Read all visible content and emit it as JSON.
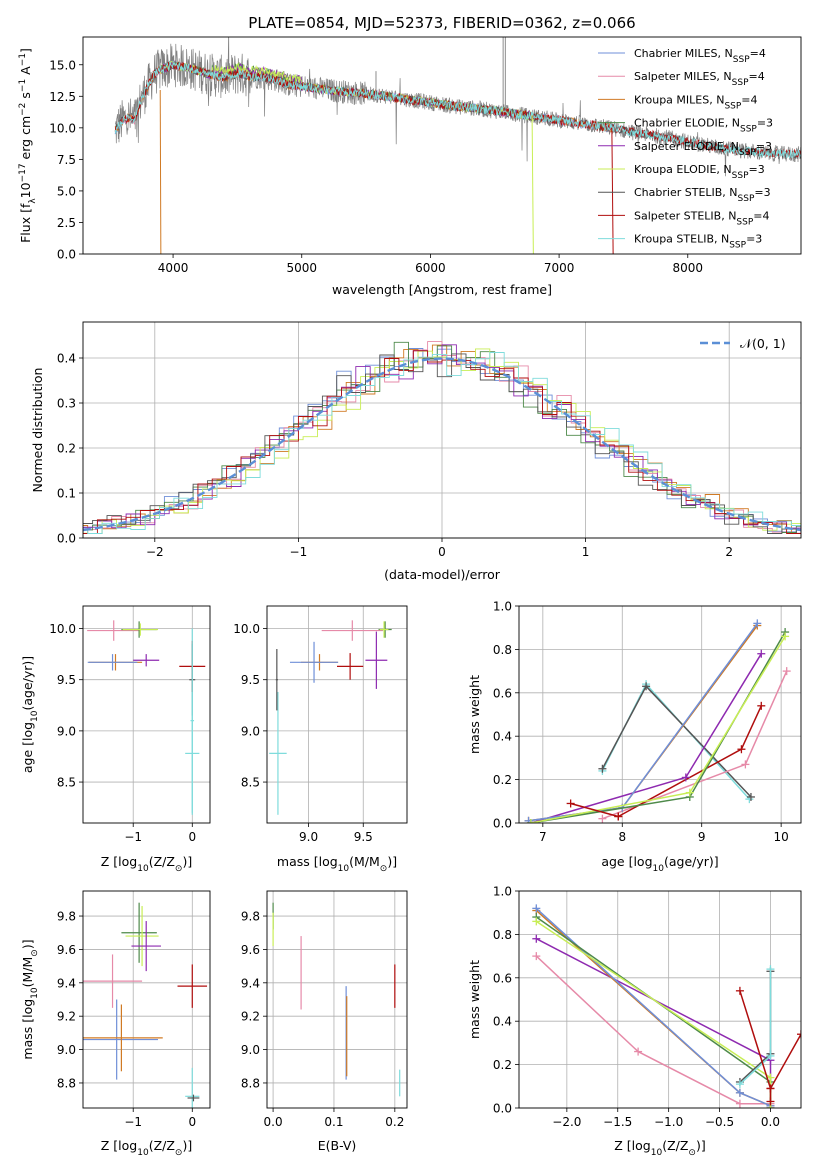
{
  "colors": {
    "Chabrier MILES": "#6f8fd8",
    "Salpeter MILES": "#e68aa8",
    "Kroupa MILES": "#d07a24",
    "Chabrier ELODIE": "#4e8a4a",
    "Salpeter ELODIE": "#8e2ab0",
    "Kroupa ELODIE": "#c8ee55",
    "Chabrier STELIB": "#555555",
    "Salpeter STELIB": "#b00e0e",
    "Kroupa STELIB": "#7fdcdc",
    "data": "#808080",
    "normal": "#5b8fd6"
  },
  "chart_data": [
    {
      "id": "spectrum",
      "type": "line",
      "title": "PLATE=0854, MJD=52373, FIBERID=0362, z=0.066",
      "xlabel": "wavelength [Angstrom, rest frame]",
      "ylabel": "Flux [f",
      "ylabel_sub": "λ",
      "ylabel_mid": "10",
      "ylabel_sup1": "−17",
      "ylabel_mid2": " erg cm",
      "ylabel_sup2": "−2",
      "ylabel_mid3": " s",
      "ylabel_sup3": "−1",
      "ylabel_mid4": " A",
      "ylabel_sup4": "−1",
      "ylabel_end": "]",
      "xlim": [
        3300,
        8880
      ],
      "ylim": [
        0,
        17.2
      ],
      "xticks": [
        4000,
        5000,
        6000,
        7000,
        8000
      ],
      "xtick_labels": [
        "4000",
        "5000",
        "6000",
        "7000",
        "8000"
      ],
      "yticks": [
        0,
        2.5,
        5,
        7.5,
        10,
        12.5,
        15
      ],
      "ytick_labels": [
        "0.0",
        "2.5",
        "5.0",
        "7.5",
        "10.0",
        "12.5",
        "15.0"
      ],
      "grid": false,
      "legend_position": "top-right",
      "continuum": {
        "x": [
          3550,
          3600,
          3650,
          3700,
          3750,
          3800,
          3850,
          3900,
          3950,
          4000,
          4100,
          4200,
          4300,
          4400,
          4500,
          4600,
          4700,
          4800,
          4900,
          5000,
          5200,
          5400,
          5600,
          5800,
          6000,
          6200,
          6400,
          6600,
          6800,
          7000,
          7200,
          7400,
          7600,
          7800,
          8000,
          8200,
          8400,
          8600,
          8800
        ],
        "y": [
          9.8,
          10.5,
          10.8,
          10.6,
          12.2,
          13.2,
          14.2,
          14.6,
          14.8,
          15.0,
          14.8,
          14.5,
          14.2,
          14.0,
          14.3,
          14.1,
          14.0,
          13.8,
          13.4,
          13.3,
          13.0,
          12.8,
          12.6,
          12.3,
          12.0,
          11.7,
          11.5,
          11.2,
          10.9,
          10.6,
          10.3,
          10.0,
          9.6,
          9.3,
          8.9,
          8.5,
          8.2,
          8.0,
          7.9
        ]
      },
      "legend": [
        {
          "label": "Chabrier MILES, N",
          "sub": "SSP",
          "tail": "=4",
          "color": "Chabrier MILES"
        },
        {
          "label": "Salpeter MILES, N",
          "sub": "SSP",
          "tail": "=4",
          "color": "Salpeter MILES"
        },
        {
          "label": "Kroupa MILES, N",
          "sub": "SSP",
          "tail": "=4",
          "color": "Kroupa MILES"
        },
        {
          "label": "Chabrier ELODIE, N",
          "sub": "SSP",
          "tail": "=3",
          "color": "Chabrier ELODIE"
        },
        {
          "label": "Salpeter ELODIE, N",
          "sub": "SSP",
          "tail": "=3",
          "color": "Salpeter ELODIE"
        },
        {
          "label": "Kroupa ELODIE, N",
          "sub": "SSP",
          "tail": "=3",
          "color": "Kroupa ELODIE"
        },
        {
          "label": "Chabrier STELIB, N",
          "sub": "SSP",
          "tail": "=3",
          "color": "Chabrier STELIB"
        },
        {
          "label": "Salpeter STELIB, N",
          "sub": "SSP",
          "tail": "=4",
          "color": "Salpeter STELIB"
        },
        {
          "label": "Kroupa STELIB, N",
          "sub": "SSP",
          "tail": "=3",
          "color": "Kroupa STELIB"
        }
      ]
    },
    {
      "id": "residuals",
      "type": "line",
      "xlabel": "(data-model)/error",
      "ylabel": "Normed distribution",
      "xlim": [
        -2.5,
        2.5
      ],
      "ylim": [
        0,
        0.48
      ],
      "xticks": [
        -2,
        -1,
        0,
        1,
        2
      ],
      "xtick_labels": [
        "−2",
        "−1",
        "0",
        "1",
        "2"
      ],
      "yticks": [
        0,
        0.1,
        0.2,
        0.3,
        0.4
      ],
      "ytick_labels": [
        "0.0",
        "0.1",
        "0.2",
        "0.3",
        "0.4"
      ],
      "grid": true,
      "legend_position": "top-right",
      "legend": [
        {
          "label": "𝒩(0, 1)",
          "color": "normal"
        }
      ],
      "bin_width": 0.1
    },
    {
      "id": "age-vs-Z",
      "type": "scatter",
      "xlabel": "Z [log",
      "xlabel_sub": "10",
      "xlabel_tail": "(Z/Z",
      "xlabel_sub2": "⊙",
      "xlabel_end": ")]",
      "ylabel": "age  [log",
      "ylabel_sub": "10",
      "ylabel_tail": "(age/yr)]",
      "xlim": [
        -1.85,
        0.3
      ],
      "ylim": [
        8.1,
        10.22
      ],
      "xticks": [
        -1,
        0
      ],
      "xtick_labels": [
        "−1",
        "0"
      ],
      "yticks": [
        8.5,
        9.0,
        9.5,
        10.0
      ],
      "ytick_labels": [
        "8.5",
        "9.0",
        "9.5",
        "10.0"
      ],
      "grid": true,
      "points": [
        {
          "m": "Salpeter MILES",
          "x": -1.33,
          "y": 9.98,
          "xerr": 0.45,
          "yerr": 0.1
        },
        {
          "m": "Kroupa MILES",
          "x": -1.3,
          "y": 9.67,
          "xerr": 0.45,
          "yerr": 0.08
        },
        {
          "m": "Chabrier MILES",
          "x": -1.35,
          "y": 9.67,
          "xerr": 0.42,
          "yerr": 0.08
        },
        {
          "m": "Chabrier ELODIE",
          "x": -0.9,
          "y": 9.99,
          "xerr": 0.3,
          "yerr": 0.08
        },
        {
          "m": "Kroupa ELODIE",
          "x": -0.88,
          "y": 9.99,
          "xerr": 0.3,
          "yerr": 0.06
        },
        {
          "m": "Salpeter ELODIE",
          "x": -0.78,
          "y": 9.69,
          "xerr": 0.22,
          "yerr": 0.06
        },
        {
          "m": "Salpeter STELIB",
          "x": 0.0,
          "y": 9.63,
          "xerr": 0.22,
          "yerr": 0.25
        },
        {
          "m": "Chabrier STELIB",
          "x": 0.0,
          "y": 9.5,
          "xerr": 0.05,
          "yerr": 0.35
        },
        {
          "m": "Kroupa STELIB",
          "x": 0.0,
          "y": 8.78,
          "xerr": 0.12,
          "yerr": 0.6
        },
        {
          "m": "Kroupa STELIB",
          "x": 0.0,
          "y": 9.1,
          "xerr": 0.03,
          "yerr": 0.9
        }
      ]
    },
    {
      "id": "age-vs-mass",
      "type": "scatter",
      "xlabel": "mass [log",
      "xlabel_sub": "10",
      "xlabel_tail": "(M/M",
      "xlabel_sub2": "⊙",
      "xlabel_end": ")]",
      "xlim": [
        8.62,
        9.9
      ],
      "ylim": [
        8.1,
        10.22
      ],
      "xticks": [
        9.0,
        9.5
      ],
      "xtick_labels": [
        "9.0",
        "9.5"
      ],
      "yticks": [
        8.5,
        9.0,
        9.5,
        10.0
      ],
      "ytick_labels": [
        "8.5",
        "9.0",
        "9.5",
        "10.0"
      ],
      "grid": true,
      "points": [
        {
          "m": "Salpeter MILES",
          "x": 9.4,
          "y": 9.98,
          "xerr": 0.28,
          "yerr": 0.1
        },
        {
          "m": "Kroupa MILES",
          "x": 9.1,
          "y": 9.67,
          "xerr": 0.17,
          "yerr": 0.08
        },
        {
          "m": "Chabrier MILES",
          "x": 9.05,
          "y": 9.67,
          "xerr": 0.22,
          "yerr": 0.2
        },
        {
          "m": "Chabrier ELODIE",
          "x": 9.7,
          "y": 9.99,
          "xerr": 0.06,
          "yerr": 0.08
        },
        {
          "m": "Kroupa ELODIE",
          "x": 9.69,
          "y": 9.99,
          "xerr": 0.04,
          "yerr": 0.08
        },
        {
          "m": "Salpeter ELODIE",
          "x": 9.62,
          "y": 9.69,
          "xerr": 0.1,
          "yerr": 0.28
        },
        {
          "m": "Salpeter STELIB",
          "x": 9.38,
          "y": 9.63,
          "xerr": 0.12,
          "yerr": 0.13
        },
        {
          "m": "Kroupa STELIB",
          "x": 8.72,
          "y": 8.78,
          "xerr": 0.08,
          "yerr": 0.6
        },
        {
          "m": "Chabrier STELIB",
          "x": 8.71,
          "y": 9.5,
          "xerr": 0.01,
          "yerr": 0.3
        }
      ]
    },
    {
      "id": "weight-vs-age",
      "type": "line",
      "xlabel": "age  [log",
      "xlabel_sub": "10",
      "xlabel_tail": "(age/yr)]",
      "ylabel": "mass weight",
      "xlim": [
        6.7,
        10.25
      ],
      "ylim": [
        0,
        1
      ],
      "xticks": [
        7,
        8,
        9,
        10
      ],
      "xtick_labels": [
        "7",
        "8",
        "9",
        "10"
      ],
      "yticks": [
        0,
        0.2,
        0.4,
        0.6,
        0.8,
        1.0
      ],
      "ytick_labels": [
        "0.0",
        "0.2",
        "0.4",
        "0.6",
        "0.8",
        "1.0"
      ],
      "grid": true,
      "series": [
        {
          "m": "Kroupa STELIB",
          "x": [
            7.75,
            8.3,
            9.6
          ],
          "y": [
            0.24,
            0.64,
            0.11
          ]
        },
        {
          "m": "Chabrier STELIB",
          "x": [
            7.75,
            8.3,
            9.62
          ],
          "y": [
            0.25,
            0.63,
            0.12
          ]
        },
        {
          "m": "Salpeter MILES",
          "x": [
            7.75,
            9.55,
            10.07
          ],
          "y": [
            0.02,
            0.27,
            0.7
          ]
        },
        {
          "m": "Salpeter STELIB",
          "x": [
            7.95,
            9.5,
            9.75
          ],
          "y": [
            0.03,
            0.34,
            0.54
          ]
        },
        {
          "m": "Salpeter ELODIE",
          "x": [
            6.85,
            8.8,
            9.75
          ],
          "y": [
            0.0,
            0.21,
            0.78
          ]
        },
        {
          "m": "Kroupa MILES",
          "x": [
            6.82,
            8.0,
            9.7
          ],
          "y": [
            0.01,
            0.07,
            0.91
          ]
        },
        {
          "m": "Chabrier MILES",
          "x": [
            6.82,
            8.0,
            9.7
          ],
          "y": [
            0.01,
            0.07,
            0.92
          ]
        },
        {
          "m": "Chabrier ELODIE",
          "x": [
            6.85,
            8.85,
            10.05
          ],
          "y": [
            0.0,
            0.12,
            0.88
          ]
        },
        {
          "m": "Kroupa ELODIE",
          "x": [
            6.85,
            8.85,
            10.05
          ],
          "y": [
            0.0,
            0.14,
            0.86
          ]
        },
        {
          "m": "Salpeter STELIB",
          "x": [
            7.35,
            7.95
          ],
          "y": [
            0.09,
            0.03
          ]
        }
      ]
    },
    {
      "id": "mass-vs-Z",
      "type": "scatter",
      "xlabel": "Z [log",
      "xlabel_sub": "10",
      "xlabel_tail": "(Z/Z",
      "xlabel_sub2": "⊙",
      "xlabel_end": ")]",
      "ylabel": "mass [log",
      "ylabel_sub": "10",
      "ylabel_tail": "(M/M",
      "ylabel_sub2": "⊙",
      "ylabel_end": ")]",
      "xlim": [
        -1.85,
        0.3
      ],
      "ylim": [
        8.65,
        9.95
      ],
      "xticks": [
        -1,
        0
      ],
      "xtick_labels": [
        "−1",
        "0"
      ],
      "yticks": [
        8.8,
        9.0,
        9.2,
        9.4,
        9.6,
        9.8
      ],
      "ytick_labels": [
        "8.8",
        "9.0",
        "9.2",
        "9.4",
        "9.6",
        "9.8"
      ],
      "grid": true,
      "points": [
        {
          "m": "Salpeter MILES",
          "x": -1.35,
          "y": 9.41,
          "xerr": 0.5,
          "yerr": 0.16
        },
        {
          "m": "Salpeter STELIB",
          "x": 0.0,
          "y": 9.38,
          "xerr": 0.25,
          "yerr": 0.13
        },
        {
          "m": "Chabrier MILES",
          "x": -1.28,
          "y": 9.06,
          "xerr": 0.7,
          "yerr": 0.24
        },
        {
          "m": "Kroupa MILES",
          "x": -1.2,
          "y": 9.07,
          "xerr": 0.7,
          "yerr": 0.2
        },
        {
          "m": "Chabrier ELODIE",
          "x": -0.9,
          "y": 9.7,
          "xerr": 0.3,
          "yerr": 0.18
        },
        {
          "m": "Kroupa ELODIE",
          "x": -0.85,
          "y": 9.68,
          "xerr": 0.28,
          "yerr": 0.18
        },
        {
          "m": "Salpeter ELODIE",
          "x": -0.78,
          "y": 9.62,
          "xerr": 0.25,
          "yerr": 0.15
        },
        {
          "m": "Kroupa STELIB",
          "x": 0.0,
          "y": 8.72,
          "xerr": 0.12,
          "yerr": 0.17
        },
        {
          "m": "Chabrier STELIB",
          "x": 0.02,
          "y": 8.71,
          "xerr": 0.1,
          "yerr": 0.02
        }
      ]
    },
    {
      "id": "mass-vs-ebv",
      "type": "scatter",
      "xlabel": "E(B-V)",
      "xlim": [
        -0.01,
        0.22
      ],
      "ylim": [
        8.65,
        9.95
      ],
      "xticks": [
        0.0,
        0.1,
        0.2
      ],
      "xtick_labels": [
        "0.0",
        "0.1",
        "0.2"
      ],
      "yticks": [
        8.8,
        9.0,
        9.2,
        9.4,
        9.6,
        9.8
      ],
      "ytick_labels": [
        "8.8",
        "9.0",
        "9.2",
        "9.4",
        "9.6",
        "9.8"
      ],
      "grid": true,
      "points": [
        {
          "m": "Chabrier ELODIE",
          "x": 0.0,
          "y": 9.8,
          "xerr": 0.0,
          "yerr": 0.08
        },
        {
          "m": "Kroupa ELODIE",
          "x": 0.0,
          "y": 9.72,
          "xerr": 0.0,
          "yerr": 0.1
        },
        {
          "m": "Salpeter MILES",
          "x": 0.046,
          "y": 9.46,
          "xerr": 0.0,
          "yerr": 0.22
        },
        {
          "m": "Chabrier MILES",
          "x": 0.12,
          "y": 9.1,
          "xerr": 0.0,
          "yerr": 0.28
        },
        {
          "m": "Kroupa MILES",
          "x": 0.121,
          "y": 9.08,
          "xerr": 0.0,
          "yerr": 0.24
        },
        {
          "m": "Salpeter STELIB",
          "x": 0.2,
          "y": 9.38,
          "xerr": 0.0,
          "yerr": 0.13
        },
        {
          "m": "Kroupa STELIB",
          "x": 0.208,
          "y": 8.8,
          "xerr": 0.0,
          "yerr": 0.08
        }
      ]
    },
    {
      "id": "weight-vs-Z",
      "type": "line",
      "xlabel": "Z [log",
      "xlabel_sub": "10",
      "xlabel_tail": "(Z/Z",
      "xlabel_sub2": "⊙",
      "xlabel_end": ")]",
      "ylabel": "mass weight",
      "xlim": [
        -2.47,
        0.3
      ],
      "ylim": [
        0,
        1
      ],
      "xticks": [
        -2.0,
        -1.5,
        -1.0,
        -0.5,
        0.0
      ],
      "xtick_labels": [
        "−2.0",
        "−1.5",
        "−1.0",
        "−0.5",
        "0.0"
      ],
      "yticks": [
        0,
        0.2,
        0.4,
        0.6,
        0.8,
        1.0
      ],
      "ytick_labels": [
        "0.0",
        "0.2",
        "0.4",
        "0.6",
        "0.8",
        "1.0"
      ],
      "grid": true,
      "series": [
        {
          "m": "Salpeter MILES",
          "x": [
            -2.3,
            -1.3,
            -0.3,
            0.0
          ],
          "y": [
            0.7,
            0.26,
            0.02,
            0.02
          ]
        },
        {
          "m": "Salpeter ELODIE",
          "x": [
            -2.3,
            0.0,
            0.0
          ],
          "y": [
            0.78,
            0.22,
            0.0
          ]
        },
        {
          "m": "Kroupa MILES",
          "x": [
            -2.3,
            -0.3,
            0.0
          ],
          "y": [
            0.91,
            0.07,
            0.01
          ]
        },
        {
          "m": "Chabrier MILES",
          "x": [
            -2.3,
            -0.3,
            0.0
          ],
          "y": [
            0.92,
            0.07,
            0.01
          ]
        },
        {
          "m": "Chabrier ELODIE",
          "x": [
            -2.3,
            0.0,
            0.0
          ],
          "y": [
            0.88,
            0.12,
            0.0
          ]
        },
        {
          "m": "Kroupa ELODIE",
          "x": [
            -2.3,
            0.0,
            0.0
          ],
          "y": [
            0.86,
            0.14,
            0.0
          ]
        },
        {
          "m": "Chabrier STELIB",
          "x": [
            -0.3,
            0.0,
            0.0
          ],
          "y": [
            0.12,
            0.25,
            0.63
          ]
        },
        {
          "m": "Kroupa STELIB",
          "x": [
            -0.3,
            0.0,
            0.0
          ],
          "y": [
            0.11,
            0.24,
            0.64
          ]
        },
        {
          "m": "Salpeter STELIB",
          "x": [
            -0.3,
            0.0,
            0.3
          ],
          "y": [
            0.54,
            0.09,
            0.34
          ]
        },
        {
          "m": "Salpeter STELIB",
          "x": [
            0.0,
            0.0
          ],
          "y": [
            0.09,
            0.03
          ]
        }
      ]
    }
  ]
}
